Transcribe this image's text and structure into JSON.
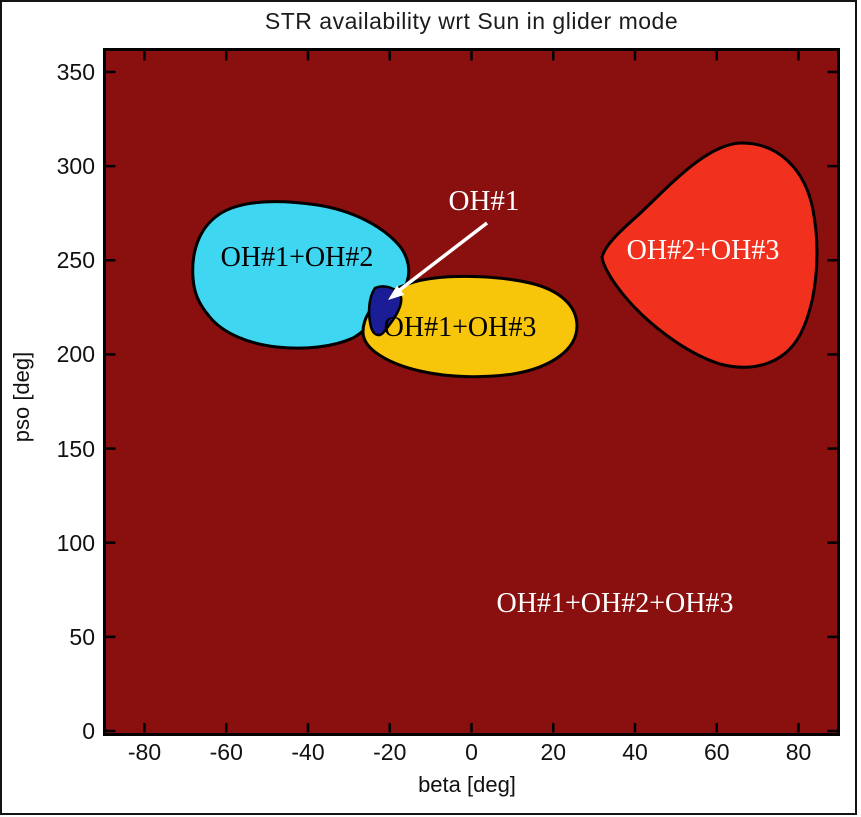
{
  "figure": {
    "title": "STR availability wrt Sun in glider mode",
    "xlabel": "beta [deg]",
    "ylabel": "pso [deg]"
  },
  "chart_data": {
    "type": "heatmap",
    "subtype": "region-classification-map",
    "title": "STR availability wrt Sun in glider mode",
    "xlabel": "beta [deg]",
    "ylabel": "pso [deg]",
    "xlim": [
      -90,
      90
    ],
    "ylim": [
      0,
      360
    ],
    "x_ticks": [
      -80,
      -60,
      -40,
      -20,
      0,
      20,
      40,
      60,
      80
    ],
    "y_ticks": [
      0,
      50,
      100,
      150,
      200,
      250,
      300,
      350
    ],
    "grid": false,
    "legend": "labels drawn inside regions",
    "regions": [
      {
        "label": "OH#1+OH#2+OH#3",
        "role": "background",
        "color": "#8a0f0f",
        "text_color": "#ffffff",
        "label_pos": {
          "beta": 35,
          "pso": 67
        }
      },
      {
        "label": "OH#1+OH#2",
        "color": "#3fd6f2",
        "text_color": "#000000",
        "center": {
          "beta": -42,
          "pso": 240
        },
        "beta_range": [
          -68,
          -16
        ],
        "pso_range": [
          196,
          282
        ],
        "label_pos": {
          "beta": -43,
          "pso": 251
        }
      },
      {
        "label": "OH#1+OH#3",
        "color": "#f7c60a",
        "text_color": "#000000",
        "center": {
          "beta": 0,
          "pso": 214
        },
        "beta_range": [
          -27,
          26
        ],
        "pso_range": [
          188,
          241
        ],
        "label_pos": {
          "beta": -3,
          "pso": 214
        }
      },
      {
        "label": "OH#2+OH#3",
        "color": "#f1301d",
        "text_color": "#ffffff",
        "center": {
          "beta": 58,
          "pso": 253
        },
        "beta_range": [
          32,
          84
        ],
        "pso_range": [
          193,
          312
        ],
        "label_pos": {
          "beta": 57,
          "pso": 254
        }
      },
      {
        "label": "OH#1",
        "color": "#1b1d97",
        "text_color": "#ffffff",
        "center": {
          "beta": -21,
          "pso": 224
        },
        "annotation": {
          "text": "OH#1",
          "arrow": "white arrow from text to region",
          "text_pos": {
            "beta": 3,
            "pso": 281
          }
        }
      }
    ]
  }
}
